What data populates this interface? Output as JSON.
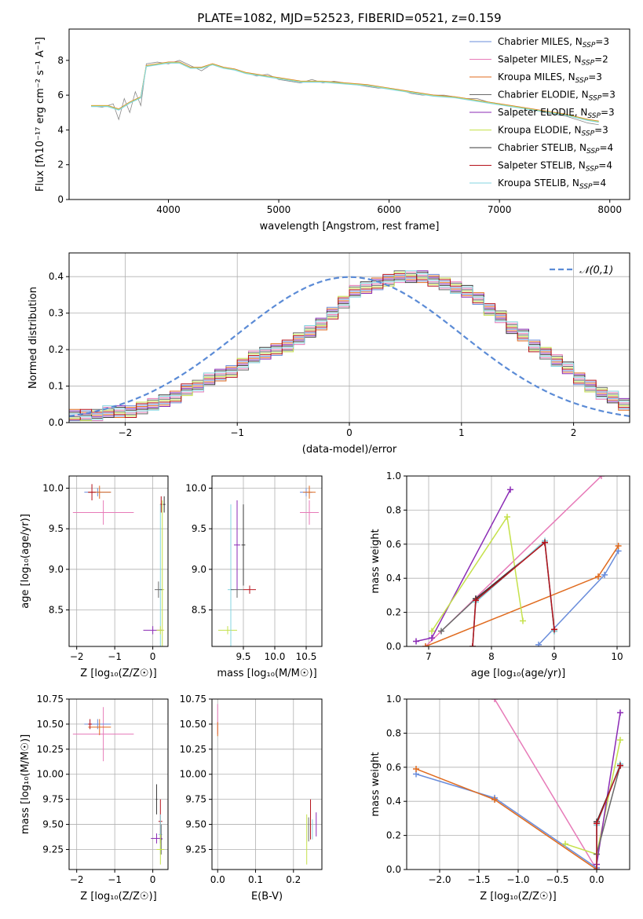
{
  "title": "PLATE=1082, MJD=52523, FIBERID=0521, z=0.159",
  "colors": {
    "chabrier_miles": "#6a8ddb",
    "salpeter_miles": "#e77ab8",
    "kroupa_miles": "#e06b1f",
    "chabrier_elodie": "#6a6a6a",
    "salpeter_elodie": "#8b2bb5",
    "kroupa_elodie": "#c5e14b",
    "chabrier_stelib": "#3a3a3a",
    "salpeter_stelib": "#b5121b",
    "kroupa_stelib": "#85d5e0",
    "spectrum": "#8a8a8a",
    "grid": "#b0b0b0"
  },
  "legend": {
    "placement": "upper right",
    "entries": [
      {
        "pre": "Chabrier MILES, N",
        "sub": "SSP",
        "post": "=3"
      },
      {
        "pre": "Salpeter MILES, N",
        "sub": "SSP",
        "post": "=2"
      },
      {
        "pre": "Kroupa MILES, N",
        "sub": "SSP",
        "post": "=3"
      },
      {
        "pre": "Chabrier ELODIE, N",
        "sub": "SSP",
        "post": "=3"
      },
      {
        "pre": "Salpeter ELODIE, N",
        "sub": "SSP",
        "post": "=3"
      },
      {
        "pre": "Kroupa ELODIE, N",
        "sub": "SSP",
        "post": "=3"
      },
      {
        "pre": "Chabrier STELIB, N",
        "sub": "SSP",
        "post": "=4"
      },
      {
        "pre": "Salpeter STELIB, N",
        "sub": "SSP",
        "post": "=4"
      },
      {
        "pre": "Kroupa STELIB, N",
        "sub": "SSP",
        "post": "=4"
      }
    ]
  },
  "chart_data": [
    {
      "id": "spectrum",
      "type": "line",
      "xlabel": "wavelength [Angstrom, rest frame]",
      "ylabel": "Flux [fλ10⁻¹⁷ erg cm⁻² s⁻¹ A⁻¹]",
      "xlim": [
        3100,
        8180
      ],
      "ylim": [
        0,
        9.8
      ],
      "xticks": [
        4000,
        5000,
        6000,
        7000,
        8000
      ],
      "yticks": [
        0,
        2,
        4,
        6,
        8
      ],
      "grid": false,
      "data_spectrum": [
        [
          3300,
          5.4
        ],
        [
          3400,
          5.3
        ],
        [
          3500,
          5.5
        ],
        [
          3550,
          4.6
        ],
        [
          3600,
          5.8
        ],
        [
          3650,
          5.0
        ],
        [
          3700,
          6.2
        ],
        [
          3750,
          5.4
        ],
        [
          3800,
          7.8
        ],
        [
          3900,
          7.9
        ],
        [
          4000,
          7.8
        ],
        [
          4100,
          8.0
        ],
        [
          4200,
          7.7
        ],
        [
          4300,
          7.4
        ],
        [
          4400,
          7.8
        ],
        [
          4500,
          7.6
        ],
        [
          4600,
          7.5
        ],
        [
          4700,
          7.3
        ],
        [
          4800,
          7.1
        ],
        [
          4900,
          7.2
        ],
        [
          5000,
          6.9
        ],
        [
          5100,
          6.8
        ],
        [
          5200,
          6.7
        ],
        [
          5300,
          6.9
        ],
        [
          5400,
          6.7
        ],
        [
          5500,
          6.8
        ],
        [
          5600,
          6.7
        ],
        [
          5700,
          6.6
        ],
        [
          5800,
          6.5
        ],
        [
          5900,
          6.4
        ],
        [
          6000,
          6.4
        ],
        [
          6100,
          6.3
        ],
        [
          6200,
          6.1
        ],
        [
          6300,
          6.0
        ],
        [
          6400,
          6.0
        ],
        [
          6500,
          6.0
        ],
        [
          6600,
          5.9
        ],
        [
          6700,
          5.8
        ],
        [
          6800,
          5.8
        ],
        [
          6900,
          5.6
        ],
        [
          7000,
          5.5
        ],
        [
          7100,
          5.4
        ],
        [
          7200,
          5.3
        ],
        [
          7300,
          5.2
        ],
        [
          7400,
          5.0
        ],
        [
          7500,
          4.9
        ],
        [
          7600,
          4.8
        ],
        [
          7700,
          4.6
        ],
        [
          7800,
          4.4
        ],
        [
          7900,
          4.3
        ]
      ],
      "model_spectrum": [
        [
          3300,
          5.4
        ],
        [
          3450,
          5.4
        ],
        [
          3550,
          5.2
        ],
        [
          3650,
          5.6
        ],
        [
          3750,
          5.9
        ],
        [
          3800,
          7.7
        ],
        [
          3900,
          7.8
        ],
        [
          4000,
          7.9
        ],
        [
          4100,
          7.9
        ],
        [
          4200,
          7.6
        ],
        [
          4300,
          7.6
        ],
        [
          4400,
          7.8
        ],
        [
          4500,
          7.6
        ],
        [
          4600,
          7.5
        ],
        [
          4700,
          7.3
        ],
        [
          4800,
          7.2
        ],
        [
          4900,
          7.1
        ],
        [
          5000,
          7.0
        ],
        [
          5200,
          6.8
        ],
        [
          5400,
          6.8
        ],
        [
          5600,
          6.7
        ],
        [
          5800,
          6.6
        ],
        [
          6000,
          6.4
        ],
        [
          6200,
          6.2
        ],
        [
          6400,
          6.0
        ],
        [
          6600,
          5.9
        ],
        [
          6800,
          5.7
        ],
        [
          7000,
          5.5
        ],
        [
          7200,
          5.3
        ],
        [
          7400,
          5.1
        ],
        [
          7600,
          4.9
        ],
        [
          7800,
          4.6
        ],
        [
          7900,
          4.5
        ]
      ]
    },
    {
      "id": "residuals",
      "type": "line",
      "xlabel": "(data-model)/error",
      "ylabel": "Normed distribution",
      "xlim": [
        -2.5,
        2.5
      ],
      "ylim": [
        0,
        0.465
      ],
      "xticks": [
        -2,
        -1,
        0,
        1,
        2
      ],
      "yticks": [
        0.0,
        0.1,
        0.2,
        0.3,
        0.4
      ],
      "grid": true,
      "legend_label": "𝒩(0,1)",
      "bin_start": -2.5,
      "bin_width": 0.1,
      "histogram": [
        0.02,
        0.02,
        0.02,
        0.03,
        0.03,
        0.03,
        0.04,
        0.05,
        0.06,
        0.07,
        0.09,
        0.1,
        0.12,
        0.13,
        0.14,
        0.16,
        0.18,
        0.19,
        0.2,
        0.21,
        0.23,
        0.25,
        0.27,
        0.3,
        0.33,
        0.36,
        0.37,
        0.38,
        0.39,
        0.4,
        0.4,
        0.4,
        0.39,
        0.38,
        0.37,
        0.36,
        0.34,
        0.31,
        0.29,
        0.26,
        0.24,
        0.21,
        0.19,
        0.17,
        0.15,
        0.12,
        0.1,
        0.08,
        0.07,
        0.05
      ]
    },
    {
      "id": "age_vs_Z",
      "type": "scatter",
      "xlabel": "Z [log₁₀(Z/Z☉)]",
      "ylabel": "age  [log₁₀(age/yr)]",
      "xlim": [
        -2.2,
        0.4
      ],
      "ylim": [
        8.05,
        10.15
      ],
      "xticks": [
        -2,
        -1,
        0
      ],
      "yticks": [
        8.5,
        9.0,
        9.5,
        10.0
      ],
      "grid": true,
      "points": [
        {
          "s": "salpeter_miles",
          "x": -1.3,
          "y": 9.7,
          "xerr": 0.8,
          "yerr": 0.15
        },
        {
          "s": "chabrier_miles",
          "x": -1.45,
          "y": 9.95,
          "xerr": 0.35,
          "yerr": 0.05
        },
        {
          "s": "kroupa_miles",
          "x": -1.4,
          "y": 9.95,
          "xerr": 0.3,
          "yerr": 0.08
        },
        {
          "s": "salpeter_stelib",
          "x": -1.6,
          "y": 9.95,
          "xerr": 0.1,
          "yerr": 0.1
        },
        {
          "s": "chabrier_stelib",
          "x": 0.3,
          "y": 9.8,
          "xerr": 0.03,
          "yerr": 0.1
        },
        {
          "s": "salpeter_stelib",
          "x": 0.22,
          "y": 9.8,
          "xerr": 0.03,
          "yerr": 0.1
        },
        {
          "s": "kroupa_elodie",
          "x": 0.25,
          "y": 8.75,
          "xerr": 0.05,
          "yerr": 1.1
        },
        {
          "s": "kroupa_stelib",
          "x": 0.2,
          "y": 8.75,
          "xerr": 0.05,
          "yerr": 1.05
        },
        {
          "s": "chabrier_elodie",
          "x": 0.15,
          "y": 8.75,
          "xerr": 0.1,
          "yerr": 0.1
        },
        {
          "s": "salpeter_elodie",
          "x": 0.0,
          "y": 8.25,
          "xerr": 0.25,
          "yerr": 0.05
        },
        {
          "s": "kroupa_elodie",
          "x": 0.2,
          "y": 8.25,
          "xerr": 0.1,
          "yerr": 0.05
        }
      ]
    },
    {
      "id": "age_vs_mass",
      "type": "scatter",
      "xlabel": "mass [log₁₀(M/M☉)]",
      "ylabel": "",
      "xlim": [
        9.0,
        10.75
      ],
      "ylim": [
        8.05,
        10.15
      ],
      "xticks": [
        9.5,
        10.0,
        10.5
      ],
      "yticks": [
        8.5,
        9.0,
        9.5,
        10.0
      ],
      "grid": true,
      "points": [
        {
          "s": "kroupa_elodie",
          "x": 9.25,
          "y": 8.25,
          "xerr": 0.15,
          "yerr": 0.05
        },
        {
          "s": "kroupa_stelib",
          "x": 9.3,
          "y": 8.75,
          "xerr": 0.05,
          "yerr": 1.05
        },
        {
          "s": "chabrier_elodie",
          "x": 9.4,
          "y": 8.75,
          "xerr": 0.1,
          "yerr": 0.1
        },
        {
          "s": "salpeter_elodie",
          "x": 9.4,
          "y": 9.3,
          "xerr": 0.05,
          "yerr": 0.55
        },
        {
          "s": "salpeter_stelib",
          "x": 9.6,
          "y": 8.75,
          "xerr": 0.1,
          "yerr": 0.05
        },
        {
          "s": "chabrier_stelib",
          "x": 9.5,
          "y": 9.3,
          "xerr": 0.03,
          "yerr": 0.5
        },
        {
          "s": "salpeter_miles",
          "x": 10.55,
          "y": 9.7,
          "xerr": 0.15,
          "yerr": 0.15
        },
        {
          "s": "chabrier_miles",
          "x": 10.5,
          "y": 9.95,
          "xerr": 0.1,
          "yerr": 0.05
        },
        {
          "s": "kroupa_miles",
          "x": 10.55,
          "y": 9.95,
          "xerr": 0.1,
          "yerr": 0.08
        }
      ]
    },
    {
      "id": "weight_vs_age",
      "type": "line",
      "xlabel": "age  [log₁₀(age/yr)]",
      "ylabel": "mass weight",
      "xlim": [
        6.65,
        10.2
      ],
      "ylim": [
        0,
        1.0
      ],
      "xticks": [
        7,
        8,
        9,
        10
      ],
      "yticks": [
        0.0,
        0.2,
        0.4,
        0.6,
        0.8,
        1.0
      ],
      "grid": true,
      "series": [
        {
          "s": "salpeter_miles",
          "x": [
            6.95,
            9.75
          ],
          "y": [
            0.0,
            1.0
          ]
        },
        {
          "s": "chabrier_miles",
          "x": [
            8.75,
            9.8,
            10.02
          ],
          "y": [
            0.01,
            0.42,
            0.56
          ]
        },
        {
          "s": "kroupa_miles",
          "x": [
            6.95,
            9.7,
            10.02
          ],
          "y": [
            0.0,
            0.41,
            0.59
          ]
        },
        {
          "s": "salpeter_elodie",
          "x": [
            6.8,
            7.05,
            8.3
          ],
          "y": [
            0.03,
            0.05,
            0.92
          ]
        },
        {
          "s": "kroupa_elodie",
          "x": [
            7.05,
            8.25,
            8.5
          ],
          "y": [
            0.09,
            0.76,
            0.15
          ]
        },
        {
          "s": "chabrier_elodie",
          "x": [
            7.2,
            7.75,
            8.85
          ],
          "y": [
            0.09,
            0.28,
            0.61
          ]
        },
        {
          "s": "chabrier_stelib",
          "x": [
            7.7,
            7.75,
            8.85,
            9.0
          ],
          "y": [
            0.0,
            0.28,
            0.61,
            0.09
          ]
        },
        {
          "s": "kroupa_stelib",
          "x": [
            7.7,
            7.75,
            8.85,
            9.0
          ],
          "y": [
            0.0,
            0.26,
            0.62,
            0.09
          ]
        },
        {
          "s": "salpeter_stelib",
          "x": [
            7.7,
            7.75,
            8.85,
            9.0
          ],
          "y": [
            0.0,
            0.27,
            0.61,
            0.1
          ]
        }
      ]
    },
    {
      "id": "mass_vs_Z",
      "type": "scatter",
      "xlabel": "Z [log₁₀(Z/Z☉)]",
      "ylabel": "mass [log₁₀(M/M☉)]",
      "xlim": [
        -2.2,
        0.4
      ],
      "ylim": [
        9.05,
        10.75
      ],
      "xticks": [
        -2,
        -1,
        0
      ],
      "yticks": [
        9.25,
        9.5,
        9.75,
        10.0,
        10.25,
        10.5,
        10.75
      ],
      "grid": true,
      "points": [
        {
          "s": "salpeter_miles",
          "x": -1.3,
          "y": 10.4,
          "xerr": 0.8,
          "yerr": 0.27
        },
        {
          "s": "chabrier_miles",
          "x": -1.45,
          "y": 10.5,
          "xerr": 0.35,
          "yerr": 0.05
        },
        {
          "s": "kroupa_miles",
          "x": -1.4,
          "y": 10.47,
          "xerr": 0.3,
          "yerr": 0.08
        },
        {
          "s": "salpeter_stelib",
          "x": -1.65,
          "y": 10.5,
          "xerr": 0.05,
          "yerr": 0.05
        },
        {
          "s": "salpeter_stelib",
          "x": 0.2,
          "y": 9.53,
          "xerr": 0.05,
          "yerr": 0.22
        },
        {
          "s": "kroupa_stelib",
          "x": 0.2,
          "y": 9.4,
          "xerr": 0.05,
          "yerr": 0.2
        },
        {
          "s": "chabrier_elodie",
          "x": 0.22,
          "y": 9.35,
          "xerr": 0.03,
          "yerr": 0.15
        },
        {
          "s": "salpeter_elodie",
          "x": 0.1,
          "y": 9.36,
          "xerr": 0.15,
          "yerr": 0.05
        },
        {
          "s": "kroupa_elodie",
          "x": 0.2,
          "y": 9.25,
          "xerr": 0.1,
          "yerr": 0.15
        },
        {
          "s": "chabrier_stelib",
          "x": 0.1,
          "y": 9.75,
          "xerr": 0.02,
          "yerr": 0.15
        }
      ]
    },
    {
      "id": "mass_vs_ebv",
      "type": "scatter",
      "xlabel": "E(B-V)",
      "ylabel": "",
      "xlim": [
        -0.015,
        0.275
      ],
      "ylim": [
        9.05,
        10.75
      ],
      "xticks": [
        0.0,
        0.1,
        0.2
      ],
      "yticks": [
        9.25,
        9.5,
        9.75,
        10.0,
        10.25,
        10.5,
        10.75
      ],
      "grid": true,
      "points": [
        {
          "s": "salpeter_miles",
          "x": 0.0,
          "y": 10.55,
          "xerr": 0.0,
          "yerr": 0.15
        },
        {
          "s": "kroupa_miles",
          "x": 0.0,
          "y": 10.45,
          "xerr": 0.0,
          "yerr": 0.07
        },
        {
          "s": "kroupa_elodie",
          "x": 0.235,
          "y": 9.35,
          "xerr": 0.0,
          "yerr": 0.25
        },
        {
          "s": "chabrier_elodie",
          "x": 0.24,
          "y": 9.45,
          "xerr": 0.0,
          "yerr": 0.12
        },
        {
          "s": "salpeter_stelib",
          "x": 0.245,
          "y": 9.55,
          "xerr": 0.0,
          "yerr": 0.2
        },
        {
          "s": "kroupa_stelib",
          "x": 0.25,
          "y": 9.45,
          "xerr": 0.0,
          "yerr": 0.1
        },
        {
          "s": "salpeter_elodie",
          "x": 0.26,
          "y": 9.5,
          "xerr": 0.0,
          "yerr": 0.12
        }
      ]
    },
    {
      "id": "weight_vs_Z",
      "type": "line",
      "xlabel": "Z [log₁₀(Z/Z☉)]",
      "ylabel": "mass weight",
      "xlim": [
        -2.42,
        0.42
      ],
      "ylim": [
        0,
        1.0
      ],
      "xticks": [
        -2.0,
        -1.5,
        -1.0,
        -0.5,
        0.0
      ],
      "yticks": [
        0.0,
        0.2,
        0.4,
        0.6,
        0.8,
        1.0
      ],
      "grid": true,
      "series": [
        {
          "s": "salpeter_miles",
          "x": [
            -1.3,
            0.0
          ],
          "y": [
            1.0,
            0.0
          ]
        },
        {
          "s": "chabrier_miles",
          "x": [
            -2.3,
            -1.3,
            0.0
          ],
          "y": [
            0.56,
            0.42,
            0.01
          ]
        },
        {
          "s": "kroupa_miles",
          "x": [
            -2.3,
            -1.3,
            0.0
          ],
          "y": [
            0.59,
            0.41,
            0.0
          ]
        },
        {
          "s": "kroupa_elodie",
          "x": [
            -0.4,
            0.0,
            0.3
          ],
          "y": [
            0.15,
            0.09,
            0.76
          ]
        },
        {
          "s": "salpeter_elodie",
          "x": [
            0.0,
            0.3
          ],
          "y": [
            0.03,
            0.92
          ]
        },
        {
          "s": "chabrier_elodie",
          "x": [
            0.0,
            0.3
          ],
          "y": [
            0.09,
            0.61
          ]
        },
        {
          "s": "chabrier_stelib",
          "x": [
            0.0,
            0.0,
            0.3
          ],
          "y": [
            0.0,
            0.28,
            0.61
          ]
        },
        {
          "s": "kroupa_stelib",
          "x": [
            0.0,
            0.0,
            0.3
          ],
          "y": [
            0.0,
            0.26,
            0.62
          ]
        },
        {
          "s": "salpeter_stelib",
          "x": [
            0.0,
            0.0,
            0.3
          ],
          "y": [
            0.0,
            0.27,
            0.61
          ]
        }
      ]
    }
  ]
}
